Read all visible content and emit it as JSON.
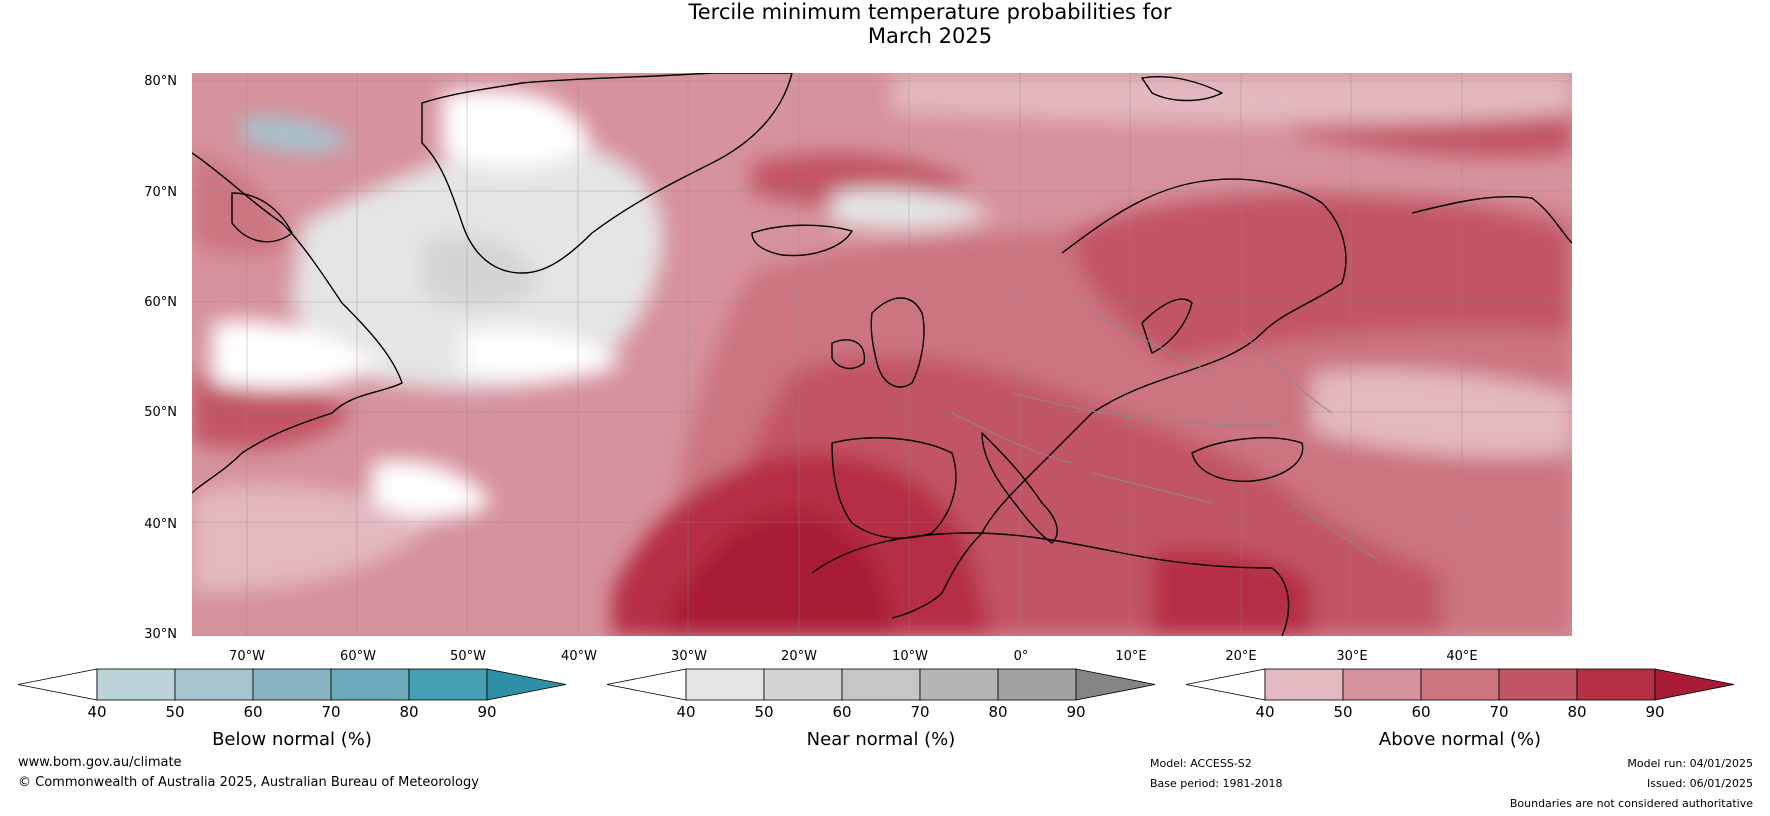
{
  "title_line1": "Tercile minimum temperature probabilities for",
  "title_line2": "March 2025",
  "lat_labels": [
    "80°N",
    "70°N",
    "60°N",
    "50°N",
    "40°N",
    "30°N"
  ],
  "lon_labels": [
    "70°W",
    "60°W",
    "50°W",
    "40°W",
    "30°W",
    "20°W",
    "10°W",
    "0°",
    "10°E",
    "20°E",
    "30°E",
    "40°E"
  ],
  "colorbars": [
    {
      "title": "Below normal (%)",
      "ticks": [
        "40",
        "50",
        "60",
        "70",
        "80",
        "90"
      ],
      "colors": [
        "#ffffff",
        "#bdd3da",
        "#a6c5ce",
        "#89b5c3",
        "#6aaabc",
        "#46a0b3",
        "#2e8fa6"
      ]
    },
    {
      "title": "Near normal (%)",
      "ticks": [
        "40",
        "50",
        "60",
        "70",
        "80",
        "90"
      ],
      "colors": [
        "#ffffff",
        "#e5e5e5",
        "#d4d4d4",
        "#c6c6c6",
        "#b5b5b5",
        "#a2a2a2",
        "#858585"
      ]
    },
    {
      "title": "Above normal (%)",
      "ticks": [
        "40",
        "50",
        "60",
        "70",
        "80",
        "90"
      ],
      "colors": [
        "#ffffff",
        "#e3b8bf",
        "#d6929d",
        "#cc7580",
        "#c25565",
        "#b52f45",
        "#a81a36"
      ]
    }
  ],
  "footer": {
    "site": "www.bom.gov.au/climate",
    "copyright": "© Commonwealth of Australia 2025, Australian Bureau of Meteorology",
    "model": "Model: ACCESS-S2",
    "base_period": "Base period: 1981-2018",
    "model_run": "Model run: 04/01/2025",
    "issued": "Issued: 06/01/2025",
    "disclaimer": "Boundaries are not considered authoritative"
  }
}
